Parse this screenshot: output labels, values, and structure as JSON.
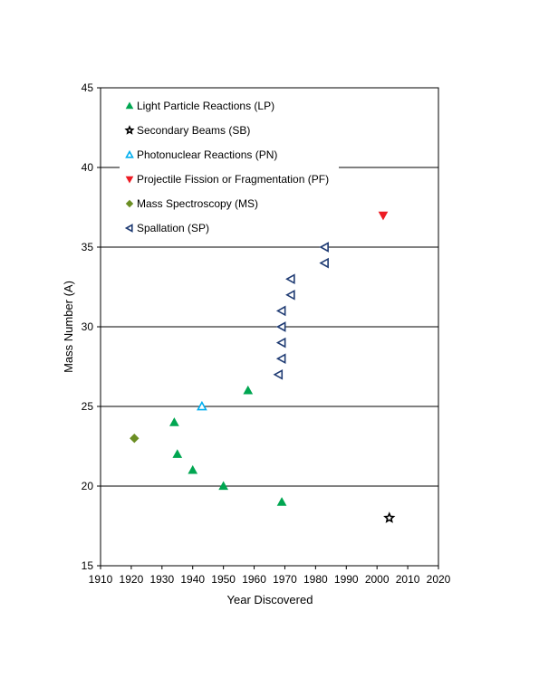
{
  "chart_data": {
    "type": "scatter",
    "xlabel": "Year Discovered",
    "ylabel": "Mass Number (A)",
    "xlim": [
      1910,
      2020
    ],
    "ylim": [
      15,
      45
    ],
    "xticks": [
      1910,
      1920,
      1930,
      1940,
      1950,
      1960,
      1970,
      1980,
      1990,
      2000,
      2010,
      2020
    ],
    "yticks": [
      15,
      20,
      25,
      30,
      35,
      40,
      45
    ],
    "grid": "horizontal",
    "legend_position": "top-left inside",
    "series": [
      {
        "name": "Light Particle Reactions (LP)",
        "marker": "triangle-up",
        "color": "#00a651",
        "filled": true,
        "points": [
          [
            1934,
            24
          ],
          [
            1935,
            22
          ],
          [
            1940,
            21
          ],
          [
            1950,
            20
          ],
          [
            1958,
            26
          ],
          [
            1969,
            19
          ]
        ]
      },
      {
        "name": "Secondary Beams (SB)",
        "marker": "star",
        "color": "#000000",
        "filled": false,
        "points": [
          [
            2004,
            18
          ]
        ]
      },
      {
        "name": "Photonuclear Reactions (PN)",
        "marker": "triangle-up",
        "color": "#00aeef",
        "filled": false,
        "points": [
          [
            1943,
            25
          ]
        ]
      },
      {
        "name": "Projectile Fission or Fragmentation (PF)",
        "marker": "triangle-down",
        "color": "#ed1c24",
        "filled": true,
        "points": [
          [
            2002,
            37
          ]
        ]
      },
      {
        "name": "Mass Spectroscopy (MS)",
        "marker": "diamond",
        "color": "#6b8e23",
        "filled": true,
        "points": [
          [
            1921,
            23
          ]
        ]
      },
      {
        "name": "Spallation (SP)",
        "marker": "triangle-left",
        "color": "#1f3b73",
        "filled": false,
        "points": [
          [
            1968,
            27
          ],
          [
            1969,
            28
          ],
          [
            1969,
            29
          ],
          [
            1969,
            30
          ],
          [
            1969,
            31
          ],
          [
            1972,
            32
          ],
          [
            1972,
            33
          ],
          [
            1983,
            34
          ],
          [
            1983,
            35
          ]
        ]
      }
    ]
  }
}
